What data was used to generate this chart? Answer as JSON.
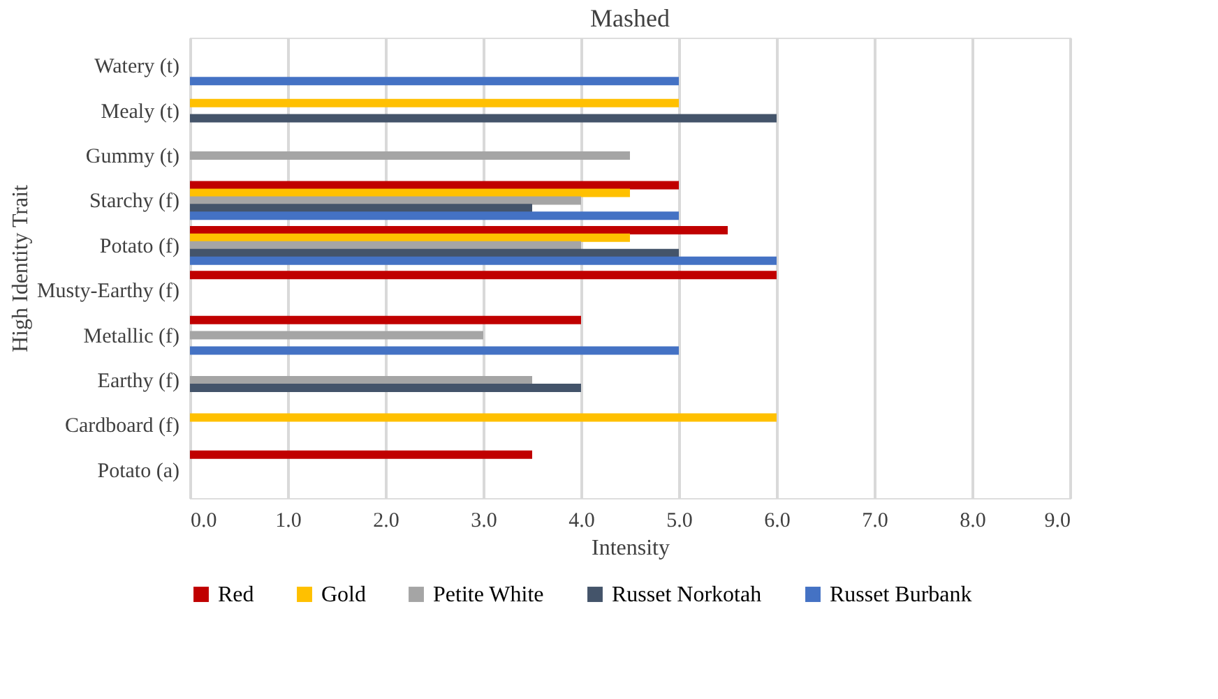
{
  "chart_data": {
    "type": "bar",
    "orientation": "horizontal",
    "title": "Mashed",
    "xlabel": "Intensity",
    "ylabel": "High Identity Trait",
    "categories": [
      "Watery (t)",
      "Mealy (t)",
      "Gummy (t)",
      "Starchy (f)",
      "Potato (f)",
      "Musty-Earthy (f)",
      "Metallic (f)",
      "Earthy (f)",
      "Cardboard (f)",
      "Potato (a)"
    ],
    "series": [
      {
        "name": "Red",
        "color": "#c00000",
        "values": [
          null,
          null,
          null,
          5,
          5.5,
          6,
          4,
          null,
          null,
          3.5
        ]
      },
      {
        "name": "Gold",
        "color": "#ffc000",
        "values": [
          null,
          5,
          null,
          4.5,
          4.5,
          null,
          null,
          null,
          6,
          null
        ]
      },
      {
        "name": "Petite White",
        "color": "#a5a5a5",
        "values": [
          null,
          null,
          4.5,
          4,
          4,
          null,
          3,
          3.5,
          null,
          null
        ]
      },
      {
        "name": "Russet Norkotah",
        "color": "#44546a",
        "values": [
          null,
          6,
          null,
          3.5,
          5,
          null,
          null,
          4,
          null,
          null
        ]
      },
      {
        "name": "Russet Burbank",
        "color": "#4472c4",
        "values": [
          5,
          null,
          null,
          5,
          6,
          null,
          5,
          null,
          null,
          null
        ]
      }
    ],
    "xlim": [
      0,
      9
    ],
    "xticks": [
      {
        "value": 0,
        "label": "0.0"
      },
      {
        "value": 1,
        "label": "1.0"
      },
      {
        "value": 2,
        "label": "2.0"
      },
      {
        "value": 3,
        "label": "3.0"
      },
      {
        "value": 4,
        "label": "4.0"
      },
      {
        "value": 5,
        "label": "5.0"
      },
      {
        "value": 6,
        "label": "6.0"
      },
      {
        "value": 7,
        "label": "7.0"
      },
      {
        "value": 8,
        "label": "8.0"
      },
      {
        "value": 9,
        "label": "9.0"
      }
    ],
    "grid": "x",
    "legend": "bottom"
  }
}
